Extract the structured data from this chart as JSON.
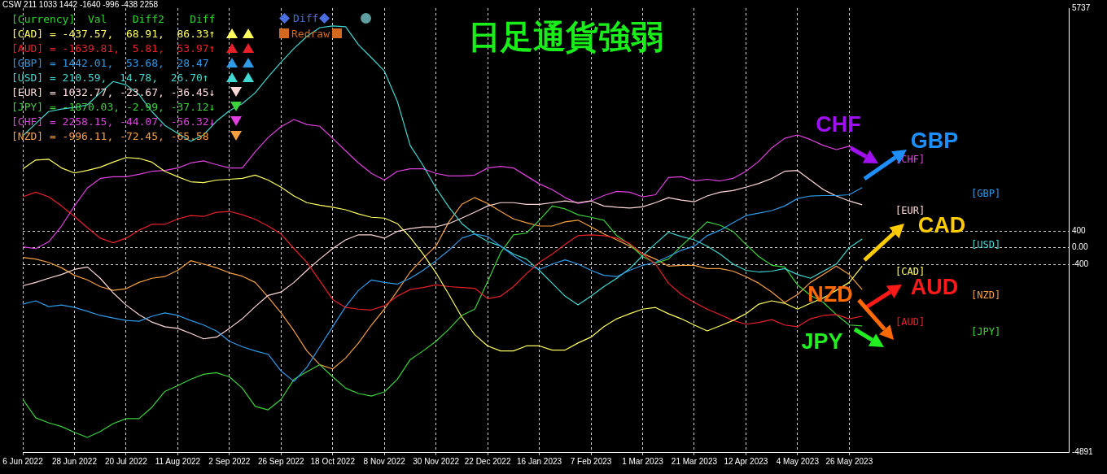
{
  "chart_data": {
    "type": "line",
    "title": "日足通貨強弱",
    "marker": "none",
    "grid": true,
    "categories": [
      "6 Jun 2022",
      null,
      null,
      null,
      "28 Jun 2022",
      null,
      null,
      null,
      "20 Jul 2022",
      null,
      null,
      null,
      "11 Aug 2022",
      null,
      null,
      null,
      "2 Sep 2022",
      null,
      null,
      null,
      "26 Sep 2022",
      null,
      null,
      null,
      "18 Oct 2022",
      null,
      null,
      null,
      "8 Nov 2022",
      null,
      null,
      null,
      "30 Nov 2022",
      null,
      null,
      null,
      "22 Dec 2022",
      null,
      null,
      null,
      "16 Jan 2023",
      null,
      null,
      null,
      "7 Feb 2023",
      null,
      null,
      null,
      "1 Mar 2023",
      null,
      null,
      null,
      "21 Mar 2023",
      null,
      null,
      null,
      "12 Apr 2023",
      null,
      null,
      null,
      "4 May 2023",
      null,
      null,
      null,
      "26 May 2023",
      null,
      null,
      null,
      null,
      null,
      null,
      null,
      null,
      null,
      null,
      null,
      null,
      null,
      null,
      null,
      null,
      null
    ],
    "ylim": [
      -4891,
      5737
    ],
    "yticks": [
      -4891,
      -400,
      {
        "value": 0,
        "label": "0.00"
      },
      400,
      5737
    ],
    "series": [
      {
        "name": "[CAD]",
        "color": "#ffff60",
        "values": [
          1890,
          2100,
          2120,
          1910,
          1790,
          1850,
          1930,
          2050,
          2160,
          2140,
          2050,
          1830,
          1700,
          1580,
          1560,
          1620,
          1640,
          1660,
          1740,
          1620,
          1450,
          1240,
          1080,
          1020,
          970,
          910,
          810,
          730,
          710,
          580,
          250,
          -150,
          -600,
          -1120,
          -1660,
          -2080,
          -2350,
          -2470,
          -2470,
          -2350,
          -2350,
          -2450,
          -2450,
          -2280,
          -2140,
          -1890,
          -1700,
          -1580,
          -1470,
          -1430,
          -1580,
          -1700,
          -1850,
          -1990,
          -1870,
          -1740,
          -1580,
          -1350,
          -1270,
          -1330,
          -1470,
          -1330,
          -1200,
          -1020,
          -830,
          -440,
          null,
          null,
          null,
          null,
          null,
          null,
          null,
          null,
          null,
          null,
          null,
          null,
          null,
          null,
          null,
          null
        ]
      },
      {
        "name": "[AUD]",
        "color": "#e8202a",
        "values": [
          1220,
          1330,
          1220,
          1000,
          750,
          480,
          230,
          120,
          230,
          420,
          560,
          560,
          690,
          770,
          750,
          850,
          870,
          790,
          680,
          520,
          330,
          -20,
          -350,
          -790,
          -1240,
          -1430,
          -1470,
          -1490,
          -1390,
          -1160,
          -1000,
          -950,
          -890,
          -930,
          -950,
          -970,
          -1220,
          -1160,
          -930,
          -620,
          -350,
          -150,
          80,
          290,
          310,
          290,
          230,
          100,
          -150,
          -390,
          -850,
          -1120,
          -1310,
          -1470,
          -1600,
          -1740,
          -1830,
          -1790,
          -1720,
          -1850,
          -1890,
          -1700,
          -1620,
          -1600,
          -1700,
          -1640,
          null,
          null,
          null,
          null,
          null,
          null,
          null,
          null,
          null,
          null,
          null,
          null,
          null,
          null,
          null,
          null
        ]
      },
      {
        "name": "[GBP]",
        "color": "#2f9ae8",
        "values": [
          -1350,
          -1270,
          -1410,
          -1370,
          -1430,
          -1520,
          -1620,
          -1680,
          -1740,
          -1760,
          -1640,
          -1560,
          -1620,
          -1740,
          -1850,
          -1990,
          -2240,
          -2370,
          -2470,
          -2550,
          -2950,
          -3200,
          -2860,
          -2370,
          -1890,
          -1410,
          -1020,
          -770,
          -830,
          -870,
          -730,
          -540,
          -310,
          -60,
          230,
          330,
          270,
          40,
          -190,
          -390,
          -520,
          -390,
          -290,
          -390,
          -540,
          -660,
          -690,
          -540,
          -420,
          -350,
          -210,
          -60,
          40,
          290,
          420,
          600,
          770,
          830,
          890,
          1000,
          1180,
          1240,
          1250,
          1250,
          1270,
          1440,
          null,
          null,
          null,
          null,
          null,
          null,
          null,
          null,
          null,
          null,
          null,
          null,
          null,
          null,
          null,
          null
        ]
      },
      {
        "name": "[USD]",
        "color": "#40d8d0",
        "values": [
          2680,
          2970,
          3260,
          3320,
          3360,
          3420,
          3710,
          3980,
          3900,
          3670,
          3260,
          2930,
          2740,
          2550,
          2700,
          3030,
          3280,
          3450,
          3710,
          4090,
          4440,
          4770,
          5060,
          5270,
          5310,
          5290,
          4860,
          4550,
          4230,
          3510,
          2450,
          1970,
          1430,
          970,
          580,
          330,
          150,
          40,
          -150,
          -270,
          -540,
          -850,
          -1160,
          -1370,
          -1160,
          -930,
          -730,
          -500,
          -190,
          100,
          370,
          270,
          190,
          40,
          -150,
          -390,
          -540,
          -580,
          -560,
          -500,
          -640,
          -730,
          -560,
          -390,
          0,
          210,
          null,
          null,
          null,
          null,
          null,
          null,
          null,
          null,
          null,
          null,
          null,
          null,
          null,
          null,
          null,
          null
        ]
      },
      {
        "name": "[EUR]",
        "color": "#ffd8d8",
        "values": [
          -910,
          -830,
          -730,
          -640,
          -520,
          -460,
          -730,
          -1080,
          -1370,
          -1600,
          -1780,
          -1890,
          -1930,
          -2050,
          -2180,
          -2140,
          -1930,
          -1700,
          -1410,
          -1140,
          -1060,
          -830,
          -540,
          -270,
          -20,
          190,
          310,
          310,
          230,
          390,
          460,
          500,
          500,
          580,
          710,
          850,
          1000,
          1080,
          1080,
          1040,
          1040,
          1080,
          1120,
          1080,
          1120,
          1000,
          970,
          950,
          980,
          1080,
          1200,
          1140,
          1100,
          1240,
          1330,
          1370,
          1450,
          1540,
          1660,
          1830,
          1850,
          1620,
          1390,
          1240,
          1120,
          1030,
          null,
          null,
          null,
          null,
          null,
          null,
          null,
          null,
          null,
          null,
          null,
          null,
          null,
          null,
          null,
          null
        ]
      },
      {
        "name": "[JPY]",
        "color": "#3cd23c",
        "values": [
          -3630,
          -4070,
          -4190,
          -4280,
          -4420,
          -4540,
          -4400,
          -4210,
          -4090,
          -4090,
          -3820,
          -3440,
          -3300,
          -3150,
          -3030,
          -2990,
          -3090,
          -3360,
          -3800,
          -3880,
          -3630,
          -3150,
          -2970,
          -2800,
          -3090,
          -3360,
          -3490,
          -3550,
          -3450,
          -3150,
          -2680,
          -2470,
          -2240,
          -1950,
          -1620,
          -1470,
          -810,
          -120,
          310,
          350,
          660,
          1000,
          930,
          790,
          730,
          660,
          290,
          80,
          -210,
          -370,
          -270,
          40,
          330,
          620,
          540,
          390,
          80,
          -210,
          -420,
          -460,
          -890,
          -1140,
          -1310,
          -1600,
          -1850,
          -1870,
          null,
          null,
          null,
          null,
          null,
          null,
          null,
          null,
          null,
          null,
          null,
          null,
          null,
          null,
          null,
          null
        ]
      },
      {
        "name": "[CHF]",
        "color": "#e040e0",
        "values": [
          20,
          -20,
          140,
          520,
          1000,
          1430,
          1660,
          1700,
          1700,
          1760,
          1830,
          1850,
          1910,
          2030,
          2080,
          1990,
          1910,
          1910,
          2300,
          2640,
          2900,
          3070,
          2950,
          2910,
          2620,
          2320,
          2030,
          1780,
          1620,
          1830,
          1890,
          1890,
          1780,
          1720,
          1720,
          1740,
          1910,
          1950,
          1910,
          1720,
          1530,
          1390,
          1200,
          1060,
          1120,
          1250,
          1350,
          1330,
          1220,
          1270,
          1680,
          1700,
          1600,
          1640,
          1600,
          1660,
          1830,
          2070,
          2390,
          2620,
          2700,
          2590,
          2450,
          2350,
          2430,
          2260,
          null,
          null,
          null,
          null,
          null,
          null,
          null,
          null,
          null,
          null,
          null,
          null,
          null,
          null,
          null,
          null
        ]
      },
      {
        "name": "[NZD]",
        "color": "#f4a040",
        "values": [
          -230,
          -270,
          -350,
          -480,
          -660,
          -770,
          -930,
          -1020,
          -980,
          -830,
          -730,
          -690,
          -540,
          -310,
          -390,
          -480,
          -600,
          -680,
          -830,
          -1180,
          -1560,
          -1990,
          -2470,
          -2800,
          -2900,
          -2640,
          -2280,
          -1850,
          -1470,
          -1040,
          -580,
          -250,
          40,
          620,
          1040,
          1200,
          1060,
          870,
          690,
          600,
          520,
          520,
          620,
          660,
          500,
          330,
          190,
          40,
          -140,
          -270,
          -440,
          -420,
          -420,
          -500,
          -500,
          -560,
          -690,
          -850,
          -1060,
          -1310,
          -1120,
          -830,
          -640,
          -440,
          -640,
          -1000,
          null,
          null,
          null,
          null,
          null,
          null,
          null,
          null,
          null,
          null,
          null,
          null,
          null,
          null,
          null,
          null
        ]
      }
    ],
    "annotations": [
      "CSW 211 1033 1442 -1640 -996 -438 2258",
      "[Currency]  Val    Diff2    Diff",
      "[CAD] = -437.57,  68.91,  86.33↑",
      "[AUD] = -1639.81,  5.81,  53.97↑",
      "[GBP] = 1442.01,  53.68,  28.47",
      "[USD] = 210.59,  14.78,  26.70↑",
      "[EUR] = 1032.77, -23.67, -36.45↓",
      "[JPY] = -1870.03, -2.99, -37.12↓",
      "[CHF] = 2258.15, -44.07, -56.32↓",
      "[NZD] = -996.11, -72.45, -65.58",
      "Diff",
      "Redraw",
      "CHF",
      "GBP",
      "CAD",
      "NZD",
      "AUD",
      "JPY"
    ]
  }
}
